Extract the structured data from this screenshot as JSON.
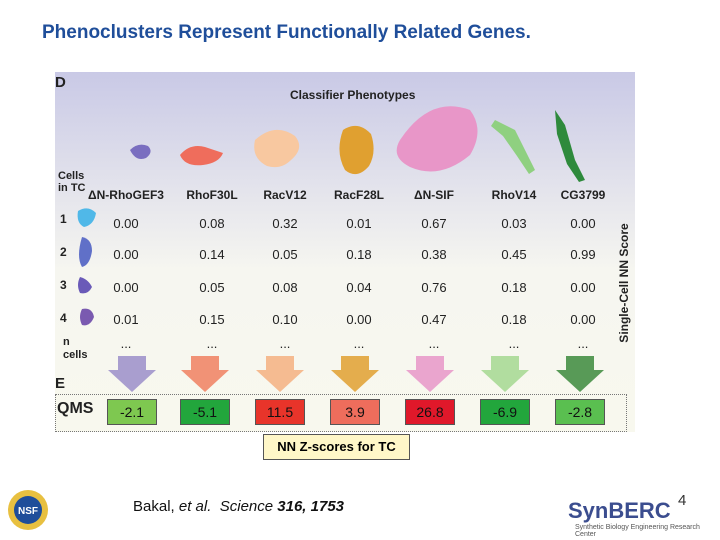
{
  "title": "Phenoclusters Represent Functionally Related Genes.",
  "panel_d_letter": "D",
  "panel_e_letter": "E",
  "classifier_title": "Classifier Phenotypes",
  "cells_header": [
    "Cells",
    "in TC"
  ],
  "columns": [
    "ΔN-RhoGEF3",
    "RhoF30L",
    "RacV12",
    "RacF28L",
    "ΔN-SIF",
    "RhoV14",
    "CG3799"
  ],
  "rows": [
    {
      "label": "1",
      "values": [
        "0.00",
        "0.08",
        "0.32",
        "0.01",
        "0.67",
        "0.03",
        "0.00"
      ]
    },
    {
      "label": "2",
      "values": [
        "0.00",
        "0.14",
        "0.05",
        "0.18",
        "0.38",
        "0.45",
        "0.99"
      ]
    },
    {
      "label": "3",
      "values": [
        "0.00",
        "0.05",
        "0.08",
        "0.04",
        "0.76",
        "0.18",
        "0.00"
      ]
    },
    {
      "label": "4",
      "values": [
        "0.01",
        "0.15",
        "0.10",
        "0.00",
        "0.47",
        "0.18",
        "0.00"
      ]
    },
    {
      "label": "n cells",
      "values": [
        "...",
        "...",
        "...",
        "...",
        "...",
        "...",
        "..."
      ]
    }
  ],
  "side_label": "Single-Cell NN Score",
  "qms_label": "QMS",
  "qms_values": [
    "-2.1",
    "-5.1",
    "11.5",
    "3.9",
    "26.8",
    "-6.9",
    "-2.8"
  ],
  "qms_colors": [
    "#7ec850",
    "#22a63c",
    "#e8342a",
    "#ee6d5c",
    "#e0182a",
    "#22a63c",
    "#5abf50"
  ],
  "arrow_colors": [
    "#9b8ec9",
    "#f08060",
    "#f4b080",
    "#e0a030",
    "#e896c8",
    "#a4d890",
    "#3c8a3c"
  ],
  "nn_zscores_label": "NN Z-scores for TC",
  "citation": {
    "authors": "Bakal, ",
    "etal": "et al.",
    "journal": "Science",
    "ref": "316, 1753"
  },
  "slide_number": "4",
  "org_logo": "SynBERC",
  "org_sub": "Synthetic Biology Engineering Research Center"
}
